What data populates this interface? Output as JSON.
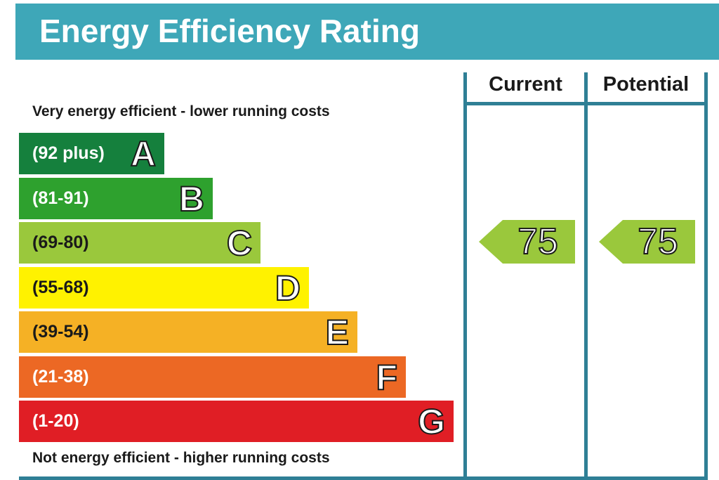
{
  "title": "Energy Efficiency Rating",
  "caption_top": "Very energy efficient - lower running costs",
  "caption_bottom": "Not energy efficient - higher running costs",
  "columns": {
    "current": "Current",
    "potential": "Potential"
  },
  "bands": [
    {
      "letter": "A",
      "range": "(92 plus)",
      "color": "#15803d",
      "text_color": "#ffffff"
    },
    {
      "letter": "B",
      "range": "(81-91)",
      "color": "#2ea12e",
      "text_color": "#ffffff"
    },
    {
      "letter": "C",
      "range": "(69-80)",
      "color": "#9ac83c",
      "text_color": "#1a1a1a"
    },
    {
      "letter": "D",
      "range": "(55-68)",
      "color": "#fff200",
      "text_color": "#1a1a1a"
    },
    {
      "letter": "E",
      "range": "(39-54)",
      "color": "#f5b125",
      "text_color": "#1a1a1a"
    },
    {
      "letter": "F",
      "range": "(21-38)",
      "color": "#ec6824",
      "text_color": "#ffffff"
    },
    {
      "letter": "G",
      "range": "(1-20)",
      "color": "#e01e25",
      "text_color": "#ffffff"
    }
  ],
  "ratings": {
    "current": {
      "value": "75",
      "band": "C",
      "color": "#9ac83c"
    },
    "potential": {
      "value": "75",
      "band": "C",
      "color": "#9ac83c"
    }
  },
  "chart_data": {
    "type": "bar",
    "categories": [
      "A",
      "B",
      "C",
      "D",
      "E",
      "F",
      "G"
    ],
    "ranges": [
      "(92 plus)",
      "(81-91)",
      "(69-80)",
      "(55-68)",
      "(39-54)",
      "(21-38)",
      "(1-20)"
    ],
    "current": 75,
    "potential": 75,
    "title": "Energy Efficiency Rating"
  }
}
